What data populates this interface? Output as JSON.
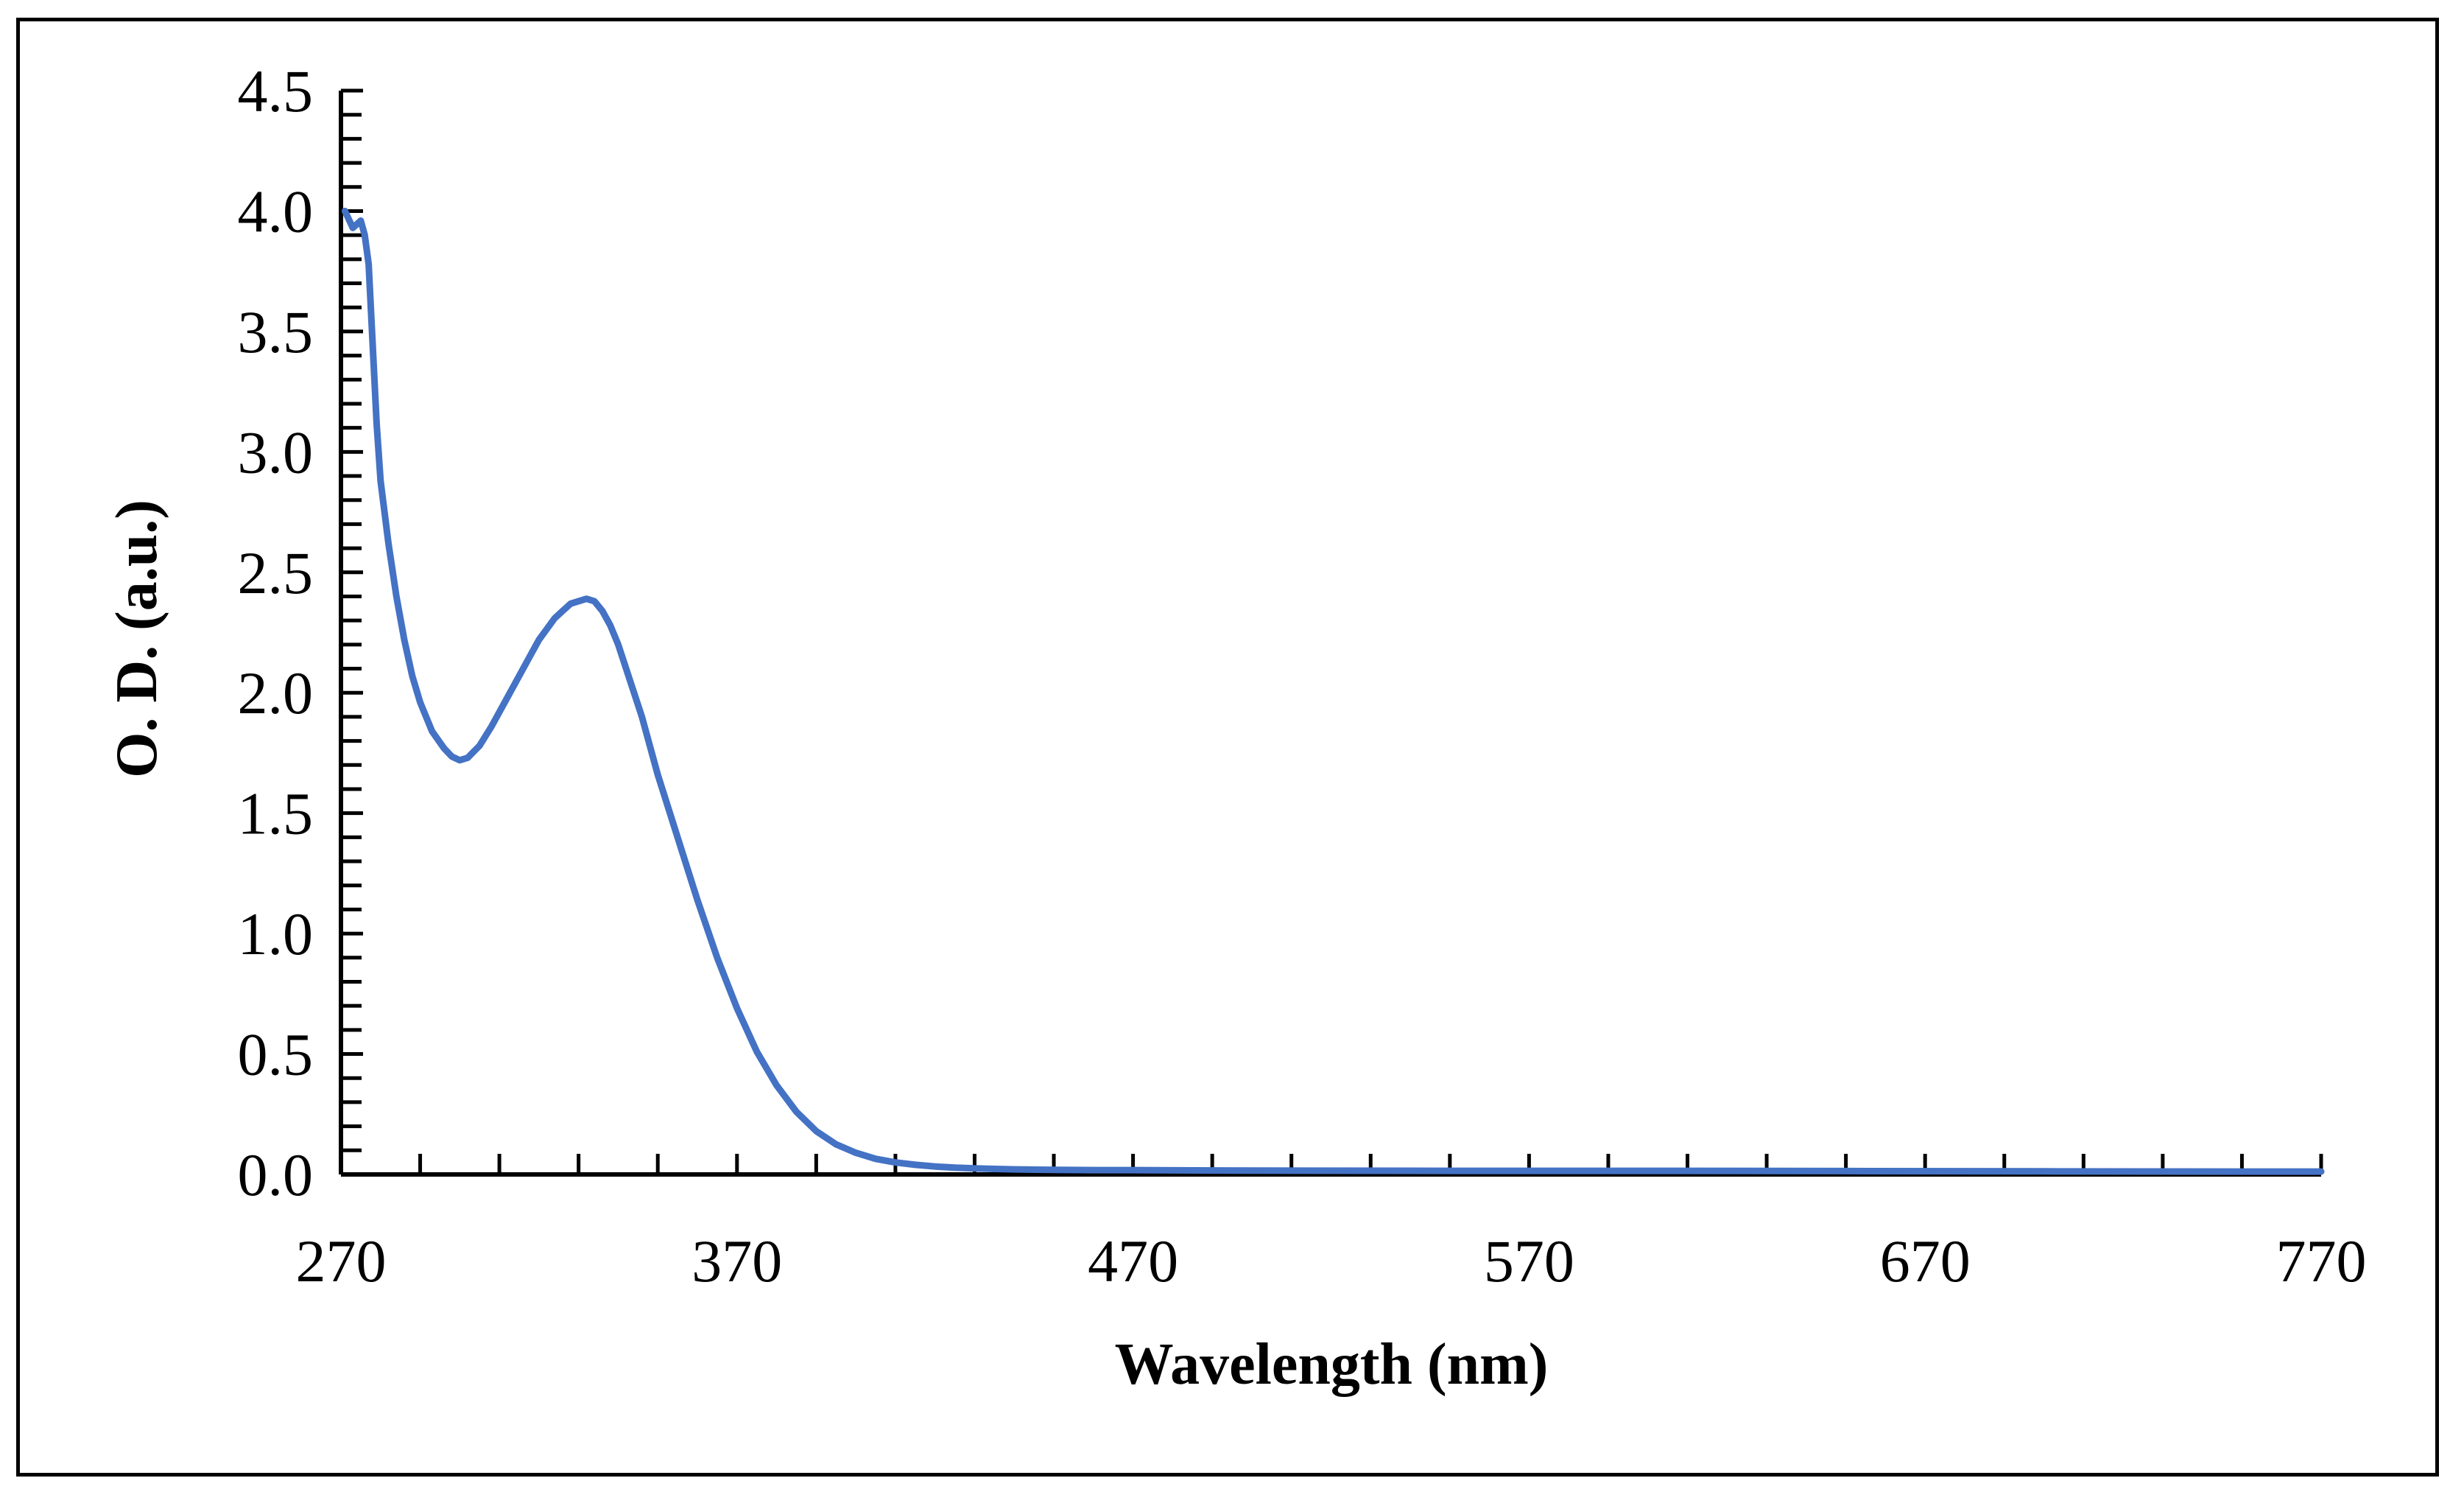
{
  "chart_data": {
    "type": "line",
    "title": "",
    "xlabel": "Wavelength (nm)",
    "ylabel": "O. D. (a.u.)",
    "xlim": [
      270,
      770
    ],
    "ylim": [
      0,
      4.5
    ],
    "x_tick_values": [
      270,
      370,
      470,
      570,
      670,
      770
    ],
    "x_tick_labels": [
      "270",
      "370",
      "470",
      "570",
      "670",
      "770"
    ],
    "y_tick_values": [
      0,
      0.5,
      1.0,
      1.5,
      2.0,
      2.5,
      3.0,
      3.5,
      4.0,
      4.5
    ],
    "y_tick_labels": [
      "0.0",
      "0.5",
      "1.0",
      "1.5",
      "2.0",
      "2.5",
      "3.0",
      "3.5",
      "4.0",
      "4.5"
    ],
    "x_minor_step": 20,
    "y_minor_step": 0.1,
    "grid": false,
    "legend": "none",
    "series": [
      {
        "name": "Absorbance",
        "color": "#4472C4",
        "x": [
          271,
          273,
          275,
          276,
          277,
          278,
          279,
          280,
          282,
          284,
          286,
          288,
          290,
          293,
          296,
          298,
          300,
          302,
          305,
          308,
          312,
          316,
          320,
          324,
          328,
          332,
          334,
          336,
          338,
          340,
          343,
          346,
          350,
          355,
          360,
          365,
          370,
          375,
          380,
          385,
          390,
          395,
          400,
          405,
          410,
          415,
          420,
          425,
          430,
          435,
          440,
          445,
          450,
          460,
          470,
          480,
          500,
          550,
          600,
          650,
          700,
          750,
          770
        ],
        "y": [
          4.0,
          3.93,
          3.96,
          3.9,
          3.78,
          3.45,
          3.12,
          2.88,
          2.62,
          2.4,
          2.22,
          2.07,
          1.96,
          1.84,
          1.77,
          1.735,
          1.72,
          1.73,
          1.78,
          1.86,
          1.98,
          2.1,
          2.22,
          2.31,
          2.37,
          2.39,
          2.38,
          2.34,
          2.28,
          2.2,
          2.05,
          1.9,
          1.66,
          1.4,
          1.14,
          0.9,
          0.69,
          0.51,
          0.37,
          0.26,
          0.18,
          0.125,
          0.09,
          0.065,
          0.05,
          0.04,
          0.033,
          0.028,
          0.025,
          0.023,
          0.021,
          0.02,
          0.019,
          0.018,
          0.018,
          0.017,
          0.016,
          0.015,
          0.015,
          0.014,
          0.013,
          0.012,
          0.012
        ]
      }
    ]
  }
}
